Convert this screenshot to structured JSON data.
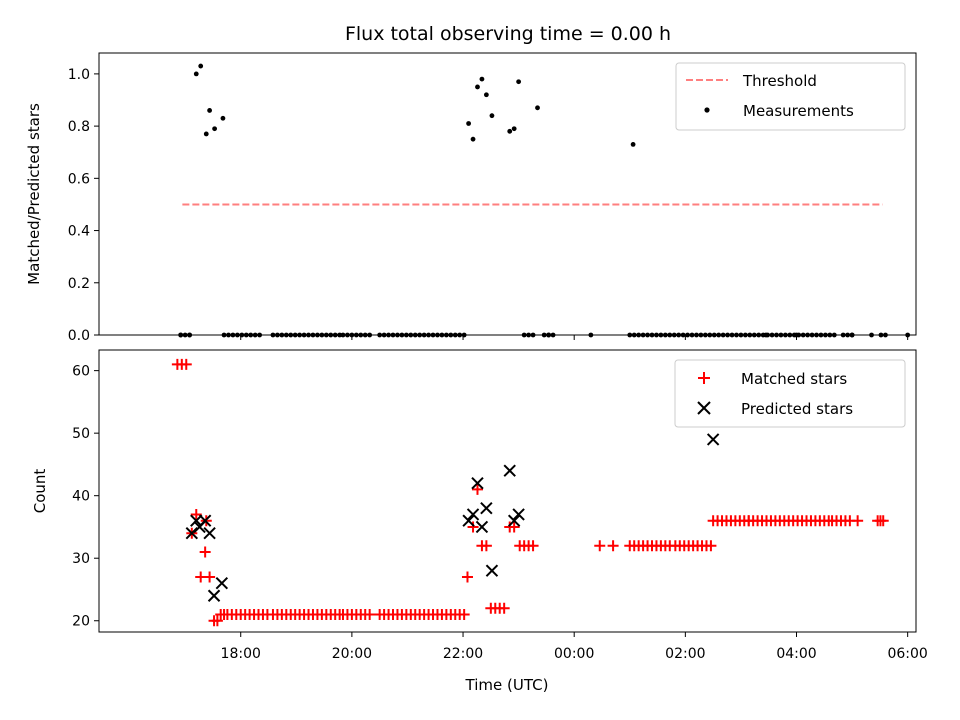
{
  "chart_data": [
    {
      "type": "scatter",
      "title": "Flux total observing time = 0.00 h",
      "xlabel": "",
      "ylabel": "Matched/Predicted stars",
      "x_unit": "hours UTC (values past 24 are after midnight)",
      "xlim": [
        15.45,
        30.15
      ],
      "ylim": [
        0.0,
        1.08
      ],
      "x_ticks": [
        18,
        20,
        22,
        24,
        26,
        28,
        30
      ],
      "x_tick_labels_shown": false,
      "y_ticks": [
        0.0,
        0.2,
        0.4,
        0.6,
        0.8,
        1.0
      ],
      "y_tick_labels": [
        "0.0",
        "0.2",
        "0.4",
        "0.6",
        "0.8",
        "1.0"
      ],
      "legend": {
        "position": "upper right",
        "entries": [
          "Threshold",
          "Measurements"
        ]
      },
      "series": [
        {
          "name": "Threshold",
          "style": "dashed-line",
          "color": "#ff7f7f",
          "x": [
            16.95,
            29.55
          ],
          "y": [
            0.5,
            0.5
          ]
        },
        {
          "name": "Measurements",
          "style": "dot",
          "color": "#000000",
          "x": [
            16.92,
            17.08,
            17.2,
            17.28,
            17.38,
            17.44,
            17.53,
            17.68,
            22.1,
            22.18,
            22.26,
            22.34,
            22.42,
            22.52,
            22.84,
            22.92,
            23.0,
            23.34,
            23.54,
            24.3,
            25.06,
            27.45,
            28.0,
            29.0,
            29.35,
            30.0
          ],
          "y": [
            0.0,
            0.0,
            1.0,
            1.03,
            0.77,
            0.86,
            0.79,
            0.83,
            0.81,
            0.75,
            0.95,
            0.98,
            0.92,
            0.84,
            0.78,
            0.79,
            0.97,
            0.87,
            0.0,
            0.0,
            0.73,
            0.0,
            0.0,
            0.0,
            0.0,
            0.0
          ]
        }
      ],
      "zero_point_runs": [
        {
          "start": 16.92,
          "end": 17.08,
          "step": 0.08
        },
        {
          "start": 17.7,
          "end": 18.38,
          "step": 0.08
        },
        {
          "start": 18.58,
          "end": 19.8,
          "step": 0.08
        },
        {
          "start": 19.84,
          "end": 20.3,
          "step": 0.08
        },
        {
          "start": 20.5,
          "end": 22.0,
          "step": 0.08
        },
        {
          "start": 23.1,
          "end": 23.26,
          "step": 0.08
        },
        {
          "start": 23.46,
          "end": 23.62,
          "step": 0.08
        },
        {
          "start": 25.0,
          "end": 27.45,
          "step": 0.08
        },
        {
          "start": 27.56,
          "end": 28.7,
          "step": 0.08
        },
        {
          "start": 28.84,
          "end": 28.96,
          "step": 0.08
        },
        {
          "start": 29.52,
          "end": 29.6,
          "step": 0.08
        }
      ]
    },
    {
      "type": "scatter",
      "title": "",
      "xlabel": "Time (UTC)",
      "ylabel": "Count",
      "xlim": [
        15.45,
        30.15
      ],
      "ylim": [
        18.2,
        63.3
      ],
      "x_ticks": [
        18,
        20,
        22,
        24,
        26,
        28,
        30
      ],
      "x_tick_labels": [
        "18:00",
        "20:00",
        "22:00",
        "00:00",
        "02:00",
        "04:00",
        "06:00"
      ],
      "y_ticks": [
        20,
        30,
        40,
        50,
        60
      ],
      "y_tick_labels": [
        "20",
        "30",
        "40",
        "50",
        "60"
      ],
      "legend": {
        "position": "upper right",
        "entries": [
          "Matched stars",
          "Predicted stars"
        ]
      },
      "series": [
        {
          "name": "Matched stars",
          "marker": "plus",
          "color": "#ff0000",
          "x": [
            16.86,
            16.94,
            17.02,
            17.12,
            17.2,
            17.28,
            17.36,
            17.38,
            17.44,
            17.52,
            17.58,
            17.64,
            17.7,
            22.08,
            22.18,
            22.26,
            22.34,
            22.42,
            22.5,
            22.58,
            22.66,
            22.74,
            22.84,
            22.92,
            23.02,
            23.1,
            23.18,
            23.26
          ],
          "y": [
            61,
            61,
            61,
            34,
            37,
            27,
            31,
            36,
            27,
            20,
            20,
            21,
            21,
            27,
            35,
            41,
            32,
            32,
            22,
            22,
            22,
            22,
            35,
            35,
            32,
            32,
            32,
            32
          ]
        },
        {
          "name": "Predicted stars",
          "marker": "x",
          "color": "#000000",
          "x": [
            17.12,
            17.2,
            17.26,
            17.36,
            17.44,
            17.52,
            17.66,
            22.1,
            22.18,
            22.26,
            22.34,
            22.42,
            22.52,
            22.84,
            22.92,
            23.0,
            26.5
          ],
          "y": [
            34,
            36,
            35,
            36,
            34,
            24,
            26,
            36,
            37,
            42,
            35,
            38,
            28,
            44,
            36,
            37,
            49
          ]
        }
      ],
      "matched_runs": [
        {
          "start": 17.76,
          "end": 18.5,
          "step": 0.08,
          "y": 21
        },
        {
          "start": 18.58,
          "end": 19.8,
          "step": 0.08,
          "y": 21
        },
        {
          "start": 19.84,
          "end": 20.3,
          "step": 0.08,
          "y": 21
        },
        {
          "start": 20.5,
          "end": 22.0,
          "step": 0.08,
          "y": 21
        },
        {
          "start": 24.46,
          "end": 24.46,
          "step": 0.08,
          "y": 32
        },
        {
          "start": 24.7,
          "end": 24.7,
          "step": 0.08,
          "y": 32
        },
        {
          "start": 25.0,
          "end": 25.74,
          "step": 0.08,
          "y": 32
        },
        {
          "start": 25.82,
          "end": 26.46,
          "step": 0.08,
          "y": 32
        },
        {
          "start": 26.5,
          "end": 27.1,
          "step": 0.08,
          "y": 36
        },
        {
          "start": 27.14,
          "end": 28.56,
          "step": 0.08,
          "y": 36
        },
        {
          "start": 28.64,
          "end": 28.96,
          "step": 0.08,
          "y": 36
        },
        {
          "start": 29.1,
          "end": 29.1,
          "step": 0.08,
          "y": 36
        },
        {
          "start": 29.46,
          "end": 29.56,
          "step": 0.05,
          "y": 36
        }
      ]
    }
  ]
}
